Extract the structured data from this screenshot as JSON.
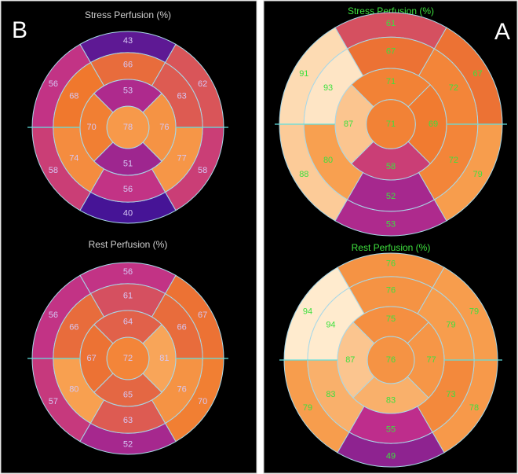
{
  "panels": [
    {
      "label": "B",
      "maps": [
        {
          "title": "Stress Perfusion (%)",
          "basal": [
            43,
            56,
            58,
            40,
            58,
            62
          ],
          "mid": [
            66,
            68,
            74,
            56,
            77,
            63
          ],
          "apical": [
            53,
            70,
            51,
            76
          ],
          "apex": 78
        },
        {
          "title": "Rest Perfusion (%)",
          "basal": [
            56,
            56,
            57,
            52,
            70,
            67
          ],
          "mid": [
            61,
            66,
            80,
            63,
            76,
            66
          ],
          "apical": [
            64,
            67,
            65,
            81
          ],
          "apex": 72
        }
      ]
    },
    {
      "label": "A",
      "maps": [
        {
          "title": "Stress Perfusion (%)",
          "basal": [
            61,
            91,
            88,
            53,
            79,
            67
          ],
          "mid": [
            67,
            93,
            80,
            52,
            72,
            72
          ],
          "apical": [
            71,
            87,
            58,
            69
          ],
          "apex": 71
        },
        {
          "title": "Rest Perfusion (%)",
          "basal": [
            76,
            94,
            79,
            49,
            78,
            79
          ],
          "mid": [
            76,
            94,
            83,
            55,
            73,
            79
          ],
          "apical": [
            75,
            87,
            83,
            77
          ],
          "apex": 76
        }
      ]
    }
  ]
}
